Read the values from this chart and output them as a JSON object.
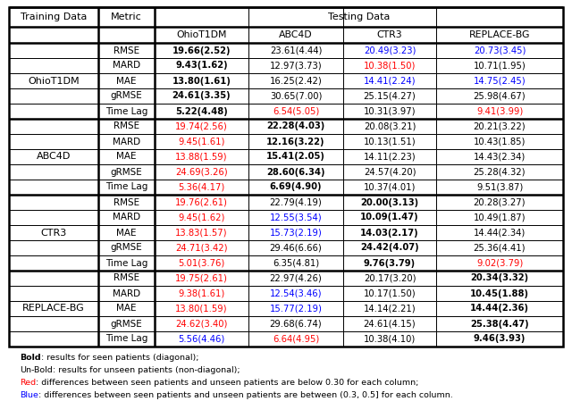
{
  "col_headers_row1": [
    "Training Data",
    "Metric",
    "Testing Data"
  ],
  "col_headers_row2": [
    "OhioT1DM",
    "ABC4D",
    "CTR3",
    "REPLACE-BG"
  ],
  "row_groups": [
    {
      "training": "OhioT1DM",
      "rows": [
        {
          "metric": "RMSE",
          "values": [
            "19.66(2.52)",
            "23.61(4.44)",
            "20.49(3.23)",
            "20.73(3.45)"
          ],
          "bold": [
            true,
            false,
            false,
            false
          ],
          "colors": [
            "black",
            "black",
            "blue",
            "blue"
          ]
        },
        {
          "metric": "MARD",
          "values": [
            "9.43(1.62)",
            "12.97(3.73)",
            "10.38(1.50)",
            "10.71(1.95)"
          ],
          "bold": [
            true,
            false,
            false,
            false
          ],
          "colors": [
            "black",
            "black",
            "red",
            "black"
          ]
        },
        {
          "metric": "MAE",
          "values": [
            "13.80(1.61)",
            "16.25(2.42)",
            "14.41(2.24)",
            "14.75(2.45)"
          ],
          "bold": [
            true,
            false,
            false,
            false
          ],
          "colors": [
            "black",
            "black",
            "blue",
            "blue"
          ]
        },
        {
          "metric": "gRMSE",
          "values": [
            "24.61(3.35)",
            "30.65(7.00)",
            "25.15(4.27)",
            "25.98(4.67)"
          ],
          "bold": [
            true,
            false,
            false,
            false
          ],
          "colors": [
            "black",
            "black",
            "black",
            "black"
          ]
        },
        {
          "metric": "Time Lag",
          "values": [
            "5.22(4.48)",
            "6.54(5.05)",
            "10.31(3.97)",
            "9.41(3.99)"
          ],
          "bold": [
            true,
            false,
            false,
            false
          ],
          "colors": [
            "black",
            "red",
            "black",
            "red"
          ]
        }
      ]
    },
    {
      "training": "ABC4D",
      "rows": [
        {
          "metric": "RMSE",
          "values": [
            "19.74(2.56)",
            "22.28(4.03)",
            "20.08(3.21)",
            "20.21(3.22)"
          ],
          "bold": [
            false,
            true,
            false,
            false
          ],
          "colors": [
            "red",
            "black",
            "black",
            "black"
          ]
        },
        {
          "metric": "MARD",
          "values": [
            "9.45(1.61)",
            "12.16(3.22)",
            "10.13(1.51)",
            "10.43(1.85)"
          ],
          "bold": [
            false,
            true,
            false,
            false
          ],
          "colors": [
            "red",
            "black",
            "black",
            "black"
          ]
        },
        {
          "metric": "MAE",
          "values": [
            "13.88(1.59)",
            "15.41(2.05)",
            "14.11(2.23)",
            "14.43(2.34)"
          ],
          "bold": [
            false,
            true,
            false,
            false
          ],
          "colors": [
            "red",
            "black",
            "black",
            "black"
          ]
        },
        {
          "metric": "gRMSE",
          "values": [
            "24.69(3.26)",
            "28.60(6.34)",
            "24.57(4.20)",
            "25.28(4.32)"
          ],
          "bold": [
            false,
            true,
            false,
            false
          ],
          "colors": [
            "red",
            "black",
            "black",
            "black"
          ]
        },
        {
          "metric": "Time Lag",
          "values": [
            "5.36(4.17)",
            "6.69(4.90)",
            "10.37(4.01)",
            "9.51(3.87)"
          ],
          "bold": [
            false,
            true,
            false,
            false
          ],
          "colors": [
            "red",
            "black",
            "black",
            "black"
          ]
        }
      ]
    },
    {
      "training": "CTR3",
      "rows": [
        {
          "metric": "RMSE",
          "values": [
            "19.76(2.61)",
            "22.79(4.19)",
            "20.00(3.13)",
            "20.28(3.27)"
          ],
          "bold": [
            false,
            false,
            true,
            false
          ],
          "colors": [
            "red",
            "black",
            "black",
            "black"
          ]
        },
        {
          "metric": "MARD",
          "values": [
            "9.45(1.62)",
            "12.55(3.54)",
            "10.09(1.47)",
            "10.49(1.87)"
          ],
          "bold": [
            false,
            false,
            true,
            false
          ],
          "colors": [
            "red",
            "blue",
            "black",
            "black"
          ]
        },
        {
          "metric": "MAE",
          "values": [
            "13.83(1.57)",
            "15.73(2.19)",
            "14.03(2.17)",
            "14.44(2.34)"
          ],
          "bold": [
            false,
            false,
            true,
            false
          ],
          "colors": [
            "red",
            "blue",
            "black",
            "black"
          ]
        },
        {
          "metric": "gRMSE",
          "values": [
            "24.71(3.42)",
            "29.46(6.66)",
            "24.42(4.07)",
            "25.36(4.41)"
          ],
          "bold": [
            false,
            false,
            true,
            false
          ],
          "colors": [
            "red",
            "black",
            "black",
            "black"
          ]
        },
        {
          "metric": "Time Lag",
          "values": [
            "5.01(3.76)",
            "6.35(4.81)",
            "9.76(3.79)",
            "9.02(3.79)"
          ],
          "bold": [
            false,
            false,
            true,
            false
          ],
          "colors": [
            "red",
            "black",
            "black",
            "red"
          ]
        }
      ]
    },
    {
      "training": "REPLACE-BG",
      "rows": [
        {
          "metric": "RMSE",
          "values": [
            "19.75(2.61)",
            "22.97(4.26)",
            "20.17(3.20)",
            "20.34(3.32)"
          ],
          "bold": [
            false,
            false,
            false,
            true
          ],
          "colors": [
            "red",
            "black",
            "black",
            "black"
          ]
        },
        {
          "metric": "MARD",
          "values": [
            "9.38(1.61)",
            "12.54(3.46)",
            "10.17(1.50)",
            "10.45(1.88)"
          ],
          "bold": [
            false,
            false,
            false,
            true
          ],
          "colors": [
            "red",
            "blue",
            "black",
            "black"
          ]
        },
        {
          "metric": "MAE",
          "values": [
            "13.80(1.59)",
            "15.77(2.19)",
            "14.14(2.21)",
            "14.44(2.36)"
          ],
          "bold": [
            false,
            false,
            false,
            true
          ],
          "colors": [
            "red",
            "blue",
            "black",
            "black"
          ]
        },
        {
          "metric": "gRMSE",
          "values": [
            "24.62(3.40)",
            "29.68(6.74)",
            "24.61(4.15)",
            "25.38(4.47)"
          ],
          "bold": [
            false,
            false,
            false,
            true
          ],
          "colors": [
            "red",
            "black",
            "black",
            "black"
          ]
        },
        {
          "metric": "Time Lag",
          "values": [
            "5.56(4.46)",
            "6.64(4.95)",
            "10.38(4.10)",
            "9.46(3.93)"
          ],
          "bold": [
            false,
            false,
            false,
            true
          ],
          "colors": [
            "blue",
            "red",
            "black",
            "black"
          ]
        }
      ]
    }
  ],
  "footnote_lines": [
    [
      [
        "Bold",
        true,
        "black"
      ],
      [
        ": results for seen patients (diagonal);",
        false,
        "black"
      ]
    ],
    [
      [
        "Un-Bold",
        false,
        "black"
      ],
      [
        ": results for unseen patients (non-diagonal);",
        false,
        "black"
      ]
    ],
    [
      [
        "Red",
        false,
        "red"
      ],
      [
        ": differences between seen patients and unseen patients are below 0.30 for each column;",
        false,
        "black"
      ]
    ],
    [
      [
        "Blue",
        false,
        "blue"
      ],
      [
        ": differences between seen patients and unseen patients are between (0.3, 0.5] for each column.",
        false,
        "black"
      ]
    ]
  ]
}
